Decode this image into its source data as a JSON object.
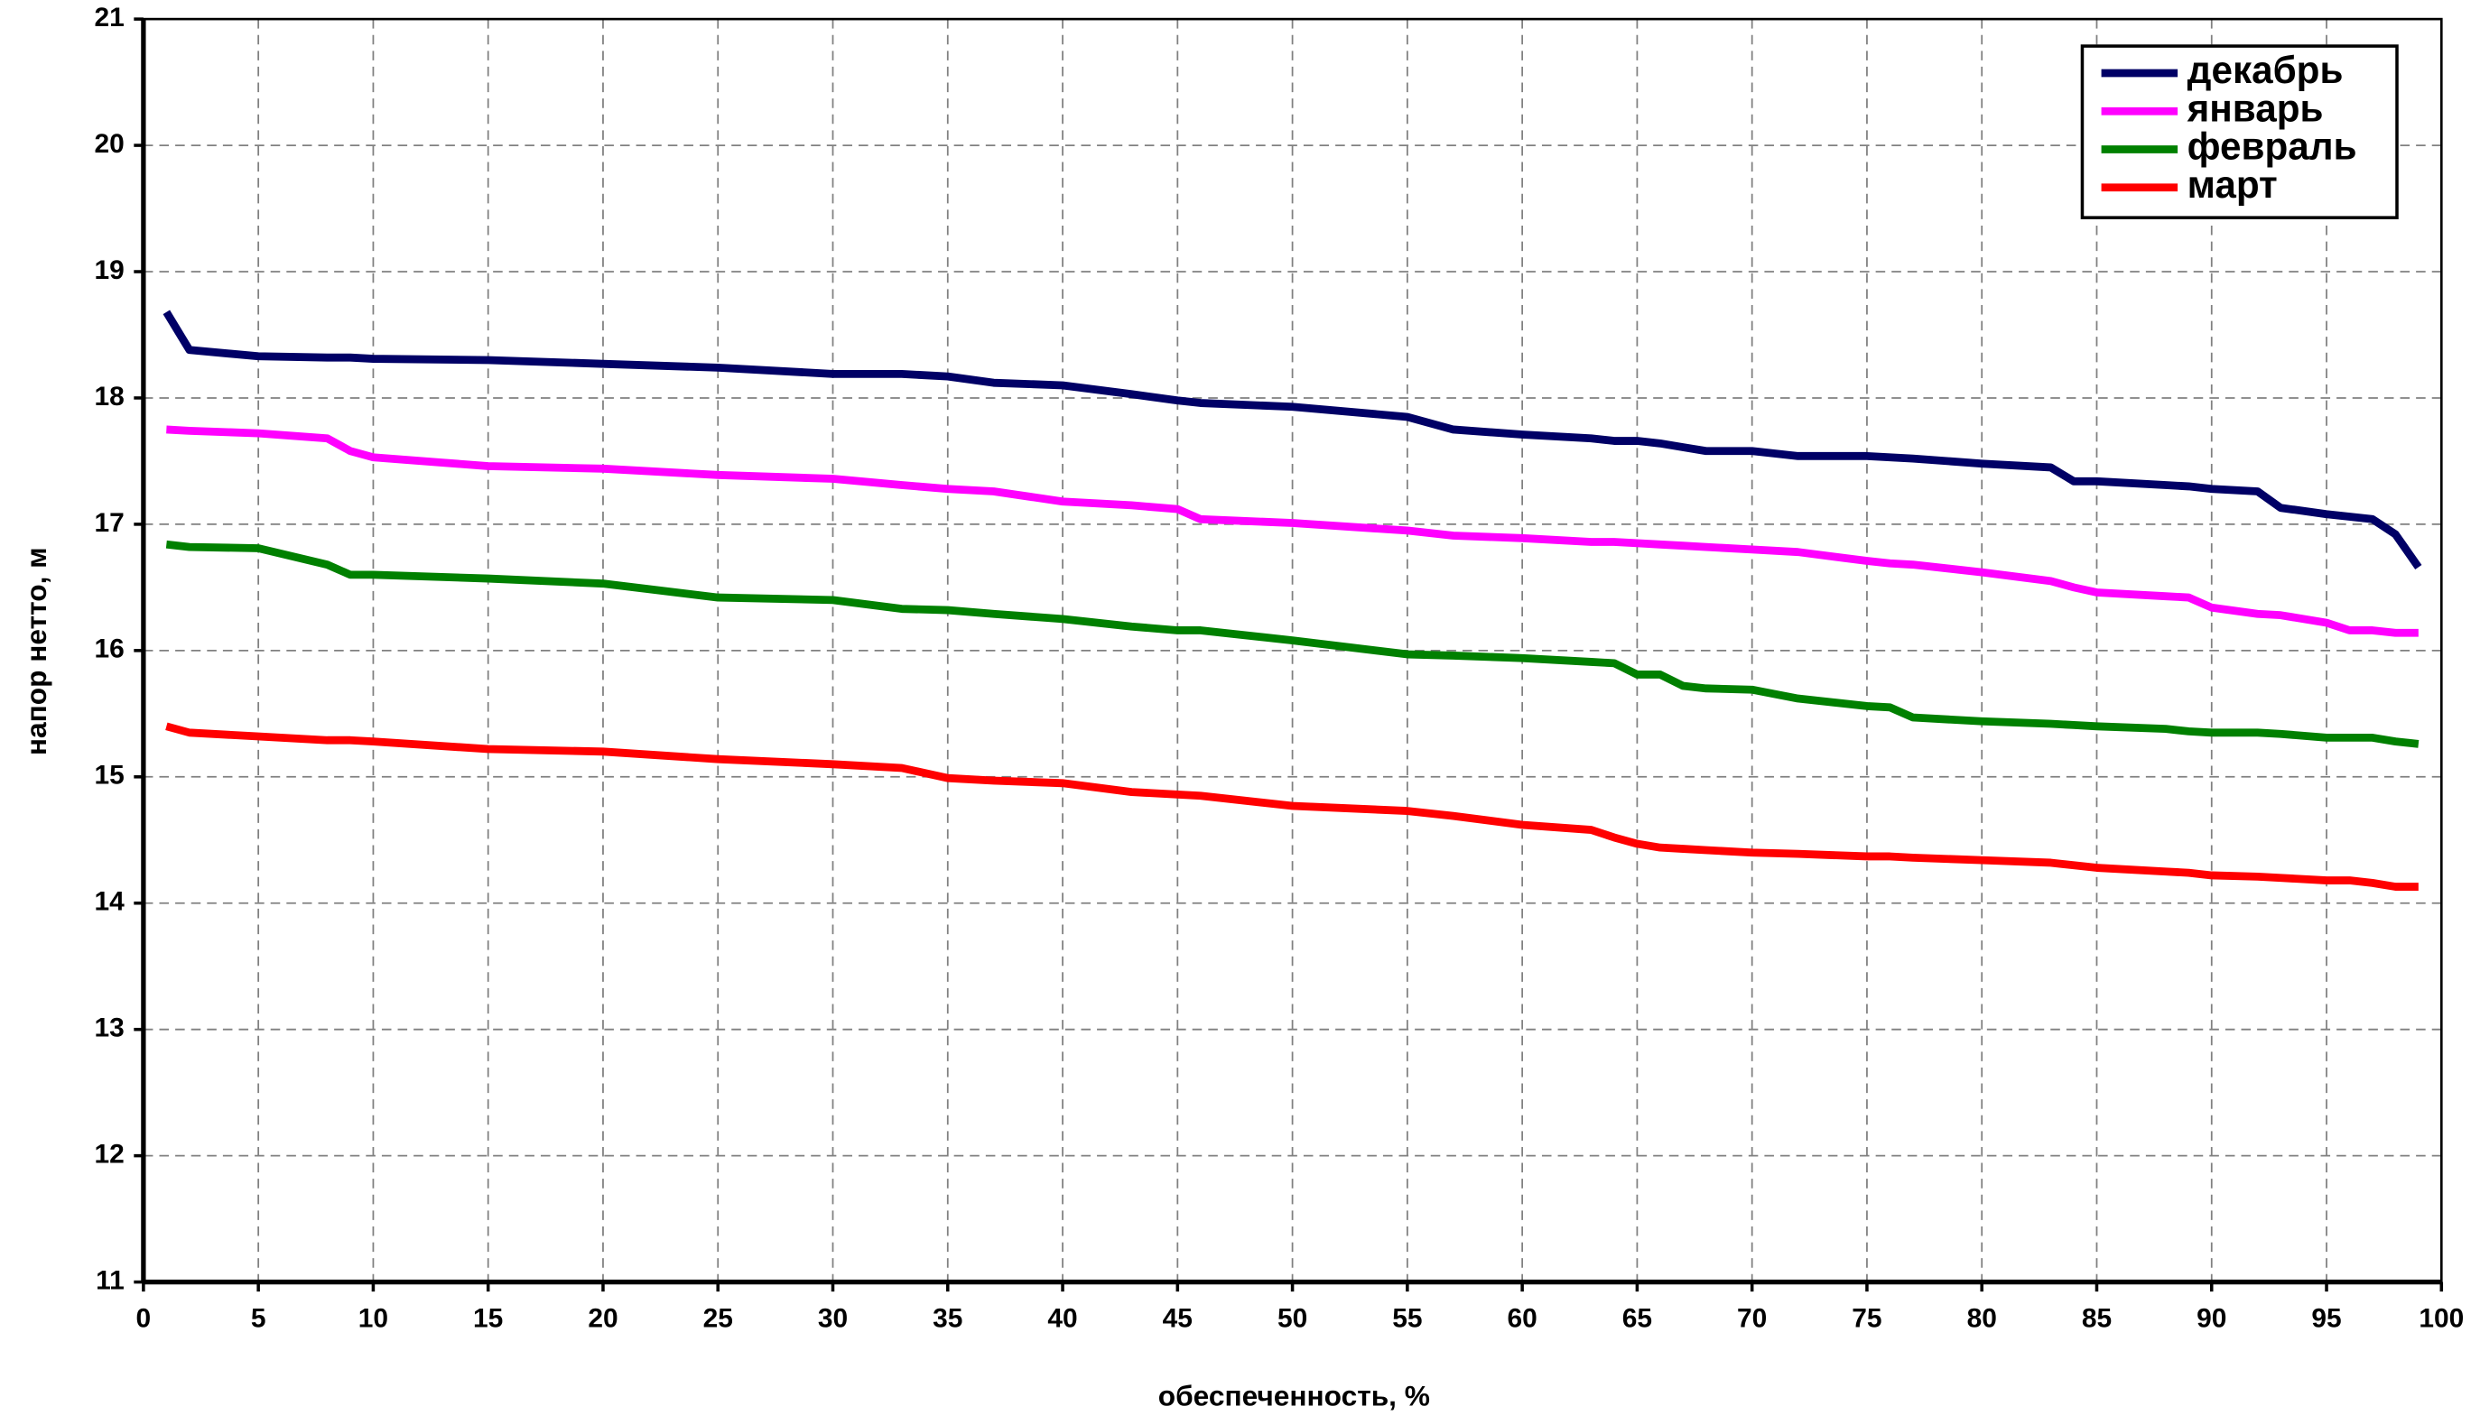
{
  "chart_data": {
    "type": "line",
    "x_label": "обеспеченность, %",
    "y_label": "напор нетто, м",
    "x": [
      1,
      2,
      5,
      8,
      9,
      10,
      15,
      20,
      25,
      30,
      33,
      35,
      37,
      40,
      43,
      45,
      46,
      50,
      55,
      57,
      60,
      63,
      64,
      65,
      66,
      67,
      68,
      70,
      72,
      75,
      76,
      77,
      80,
      83,
      84,
      85,
      88,
      89,
      90,
      92,
      93,
      95,
      96,
      97,
      98,
      99
    ],
    "series": [
      {
        "name": "декабрь",
        "color": "#000066",
        "values": [
          18.68,
          18.38,
          18.33,
          18.32,
          18.32,
          18.31,
          18.3,
          18.27,
          18.24,
          18.19,
          18.19,
          18.17,
          18.12,
          18.1,
          18.03,
          17.98,
          17.96,
          17.93,
          17.85,
          17.75,
          17.71,
          17.68,
          17.66,
          17.66,
          17.64,
          17.61,
          17.58,
          17.58,
          17.54,
          17.54,
          17.53,
          17.52,
          17.48,
          17.45,
          17.34,
          17.34,
          17.31,
          17.3,
          17.28,
          17.26,
          17.13,
          17.08,
          17.06,
          17.04,
          16.92,
          16.66
        ]
      },
      {
        "name": "январь",
        "color": "#ff00ff",
        "values": [
          17.75,
          17.74,
          17.72,
          17.68,
          17.58,
          17.53,
          17.46,
          17.44,
          17.39,
          17.36,
          17.31,
          17.28,
          17.26,
          17.18,
          17.15,
          17.12,
          17.04,
          17.01,
          16.95,
          16.91,
          16.89,
          16.86,
          16.86,
          16.85,
          16.84,
          16.83,
          16.82,
          16.8,
          16.78,
          16.71,
          16.69,
          16.68,
          16.62,
          16.55,
          16.5,
          16.46,
          16.43,
          16.42,
          16.34,
          16.29,
          16.28,
          16.22,
          16.16,
          16.16,
          16.14,
          16.14
        ]
      },
      {
        "name": "февраль",
        "color": "#008000",
        "values": [
          16.84,
          16.82,
          16.81,
          16.68,
          16.6,
          16.6,
          16.57,
          16.53,
          16.42,
          16.4,
          16.33,
          16.32,
          16.29,
          16.25,
          16.19,
          16.16,
          16.16,
          16.08,
          15.97,
          15.96,
          15.94,
          15.91,
          15.9,
          15.81,
          15.81,
          15.72,
          15.7,
          15.69,
          15.62,
          15.56,
          15.55,
          15.47,
          15.44,
          15.42,
          15.41,
          15.4,
          15.38,
          15.36,
          15.35,
          15.35,
          15.34,
          15.31,
          15.31,
          15.31,
          15.28,
          15.26
        ]
      },
      {
        "name": "март",
        "color": "#ff0000",
        "values": [
          15.4,
          15.35,
          15.32,
          15.29,
          15.29,
          15.28,
          15.22,
          15.2,
          15.14,
          15.1,
          15.07,
          14.99,
          14.97,
          14.95,
          14.88,
          14.86,
          14.85,
          14.77,
          14.73,
          14.69,
          14.62,
          14.58,
          14.52,
          14.47,
          14.44,
          14.43,
          14.42,
          14.4,
          14.39,
          14.37,
          14.37,
          14.36,
          14.34,
          14.32,
          14.3,
          14.28,
          14.25,
          14.24,
          14.22,
          14.21,
          14.2,
          14.18,
          14.18,
          14.16,
          14.13,
          14.13
        ]
      }
    ],
    "xlim": [
      0,
      100
    ],
    "xticks": [
      0,
      5,
      10,
      15,
      20,
      25,
      30,
      35,
      40,
      45,
      50,
      55,
      60,
      65,
      70,
      75,
      80,
      85,
      90,
      95,
      100
    ],
    "ylim": [
      11,
      21
    ],
    "yticks": [
      11,
      12,
      13,
      14,
      15,
      16,
      17,
      18,
      19,
      20,
      21
    ],
    "grid": true,
    "legend": "top-right"
  }
}
